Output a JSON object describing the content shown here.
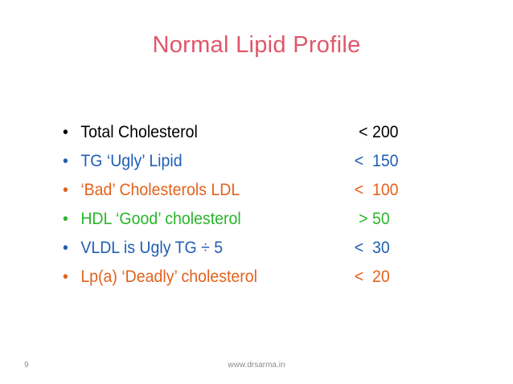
{
  "slide": {
    "title": "Normal Lipid Profile",
    "footer_page": "9",
    "footer_site": "www.drsarma.in",
    "title_color": "#e0566a",
    "items": [
      {
        "bullet": "•",
        "label": "Total Cholesterol",
        "value": " < 200",
        "color": "#000000"
      },
      {
        "bullet": "•",
        "label": "TG ‘Ugly’ Lipid",
        "value": "<  150",
        "color": "#1f5fb4"
      },
      {
        "bullet": "•",
        "label": "‘Bad’ Cholesterols LDL",
        "value": "<  100",
        "color": "#e3621c"
      },
      {
        "bullet": "•",
        "label": "HDL ‘Good’ cholesterol",
        "value": " > 50",
        "color": "#2bb52b"
      },
      {
        "bullet": "•",
        "label": "VLDL is Ugly TG ÷ 5",
        "value": "<  30",
        "color": "#1f5fb4"
      },
      {
        "bullet": "•",
        "label": "Lp(a) ‘Deadly’ cholesterol",
        "value": "<  20",
        "color": "#e3621c"
      }
    ]
  }
}
